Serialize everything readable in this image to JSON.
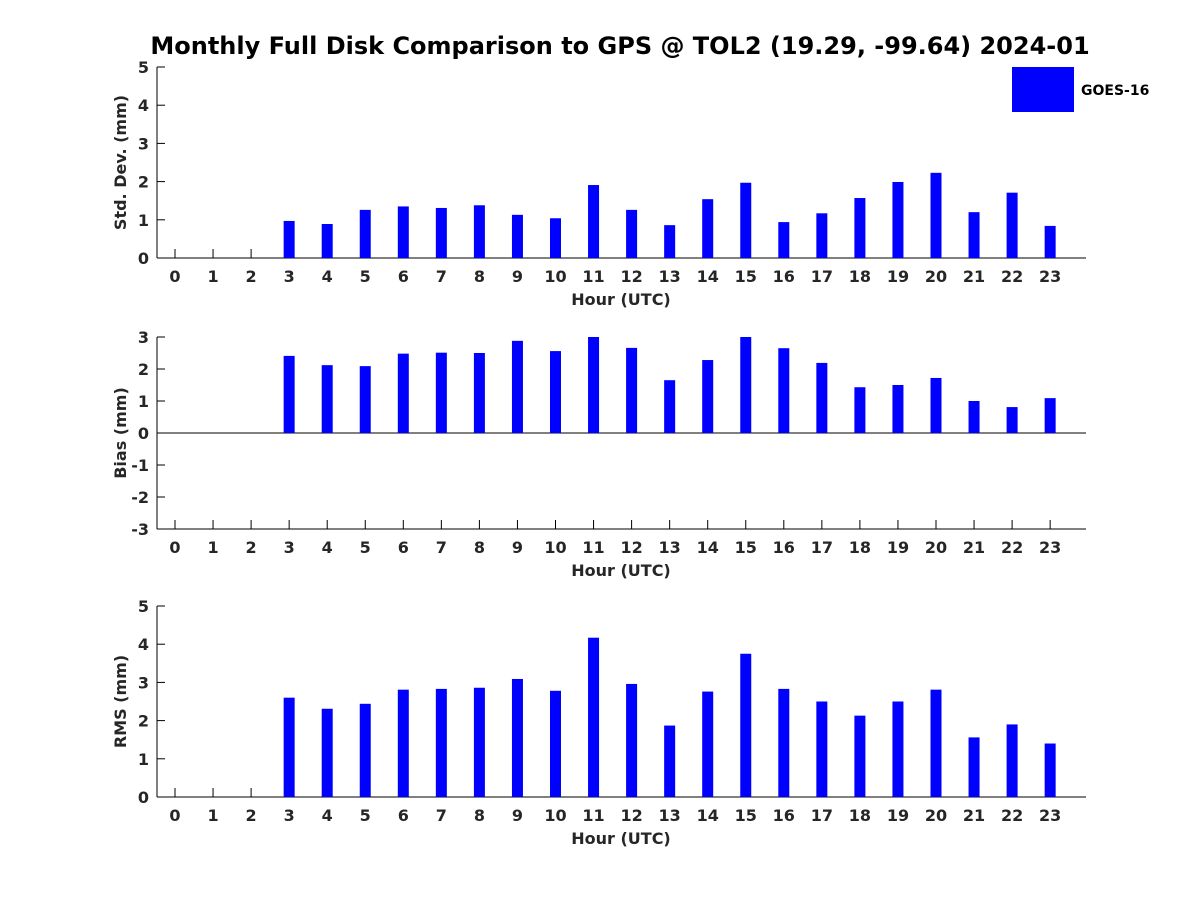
{
  "title": "Monthly Full Disk Comparison to GPS @ TOL2 (19.29, -99.64) 2024-01",
  "legend": {
    "label": "GOES-16",
    "color": "#0000ff",
    "placement": "top-right"
  },
  "chart_data": [
    {
      "type": "bar",
      "ylabel": "Std. Dev. (mm)",
      "xlabel": "Hour (UTC)",
      "ylim": [
        0,
        5
      ],
      "yticks": [
        0,
        1,
        2,
        3,
        4,
        5
      ],
      "categories": [
        "0",
        "1",
        "2",
        "3",
        "4",
        "5",
        "6",
        "7",
        "8",
        "9",
        "10",
        "11",
        "12",
        "13",
        "14",
        "15",
        "16",
        "17",
        "18",
        "19",
        "20",
        "21",
        "22",
        "23"
      ],
      "series": [
        {
          "name": "GOES-16",
          "values": [
            null,
            null,
            null,
            0.97,
            0.89,
            1.26,
            1.35,
            1.31,
            1.38,
            1.13,
            1.04,
            1.91,
            1.26,
            0.86,
            1.54,
            1.97,
            0.94,
            1.17,
            1.57,
            1.99,
            2.23,
            1.2,
            1.71,
            0.84
          ]
        }
      ]
    },
    {
      "type": "bar",
      "ylabel": "Bias (mm)",
      "xlabel": "Hour (UTC)",
      "ylim": [
        -3,
        3
      ],
      "yticks": [
        -3,
        -2,
        -1,
        0,
        1,
        2,
        3
      ],
      "categories": [
        "0",
        "1",
        "2",
        "3",
        "4",
        "5",
        "6",
        "7",
        "8",
        "9",
        "10",
        "11",
        "12",
        "13",
        "14",
        "15",
        "16",
        "17",
        "18",
        "19",
        "20",
        "21",
        "22",
        "23"
      ],
      "series": [
        {
          "name": "GOES-16",
          "values": [
            null,
            null,
            null,
            2.41,
            2.12,
            2.09,
            2.48,
            2.51,
            2.5,
            2.88,
            2.56,
            3.0,
            2.66,
            1.65,
            2.28,
            3.0,
            2.65,
            2.19,
            1.43,
            1.5,
            1.72,
            1.0,
            0.81,
            1.09
          ]
        }
      ]
    },
    {
      "type": "bar",
      "ylabel": "RMS (mm)",
      "xlabel": "Hour (UTC)",
      "ylim": [
        0,
        5
      ],
      "yticks": [
        0,
        1,
        2,
        3,
        4,
        5
      ],
      "categories": [
        "0",
        "1",
        "2",
        "3",
        "4",
        "5",
        "6",
        "7",
        "8",
        "9",
        "10",
        "11",
        "12",
        "13",
        "14",
        "15",
        "16",
        "17",
        "18",
        "19",
        "20",
        "21",
        "22",
        "23"
      ],
      "series": [
        {
          "name": "GOES-16",
          "values": [
            null,
            null,
            null,
            2.6,
            2.31,
            2.44,
            2.81,
            2.83,
            2.86,
            3.09,
            2.78,
            4.17,
            2.96,
            1.87,
            2.76,
            3.75,
            2.83,
            2.5,
            2.13,
            2.5,
            2.81,
            1.56,
            1.9,
            1.4
          ]
        }
      ]
    }
  ]
}
